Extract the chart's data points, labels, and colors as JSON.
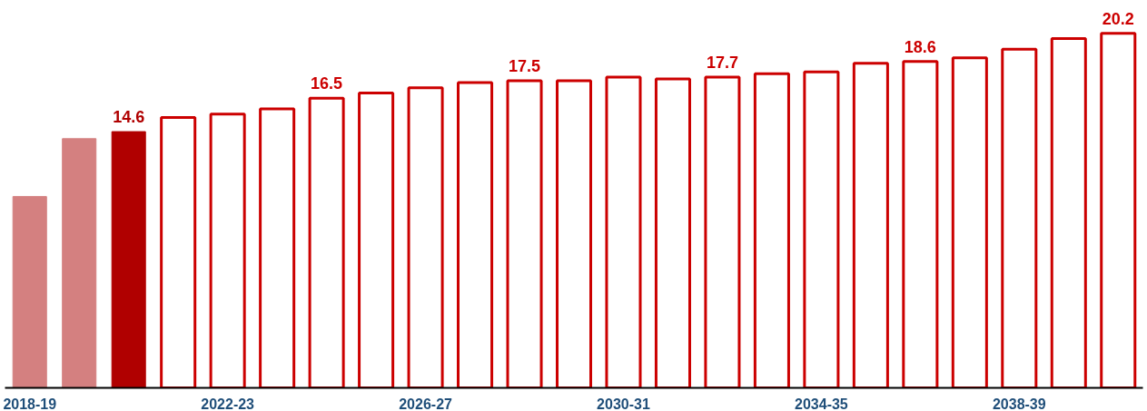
{
  "chart_data": {
    "type": "bar",
    "categories": [
      "2018-19",
      null,
      null,
      null,
      "2022-23",
      null,
      null,
      null,
      "2026-27",
      null,
      null,
      null,
      "2030-31",
      null,
      null,
      null,
      "2034-35",
      null,
      null,
      null,
      "2038-39",
      null,
      null
    ],
    "series": [
      {
        "colors": [
          "#d48080",
          "#d48080",
          "#b00000",
          null,
          null,
          null,
          null,
          null,
          null,
          null,
          null,
          null,
          null,
          null,
          null,
          null,
          null,
          null,
          null,
          null,
          null,
          null,
          null
        ],
        "values": [
          10.9,
          14.2,
          14.6,
          null,
          null,
          null,
          null,
          null,
          null,
          null,
          null,
          null,
          null,
          null,
          null,
          null,
          null,
          null,
          null,
          null,
          null,
          null,
          null
        ],
        "value_labels": [
          null,
          null,
          "14.6",
          null,
          null,
          null,
          null,
          null,
          null,
          null,
          null,
          null,
          null,
          null,
          null,
          null,
          null,
          null,
          null,
          null,
          null,
          null,
          null
        ]
      },
      {
        "color": "#cc0000",
        "values": [
          null,
          null,
          null,
          15.4,
          15.6,
          15.9,
          16.5,
          16.8,
          17.1,
          17.4,
          17.5,
          17.5,
          17.7,
          17.6,
          17.7,
          17.9,
          18.0,
          18.5,
          18.6,
          18.8,
          19.3,
          19.9,
          20.2
        ],
        "value_labels": [
          null,
          null,
          null,
          null,
          null,
          null,
          "16.5",
          null,
          null,
          null,
          "17.5",
          null,
          null,
          null,
          "17.7",
          null,
          null,
          null,
          "18.6",
          null,
          null,
          null,
          "20.2"
        ]
      }
    ],
    "grid": false
  }
}
